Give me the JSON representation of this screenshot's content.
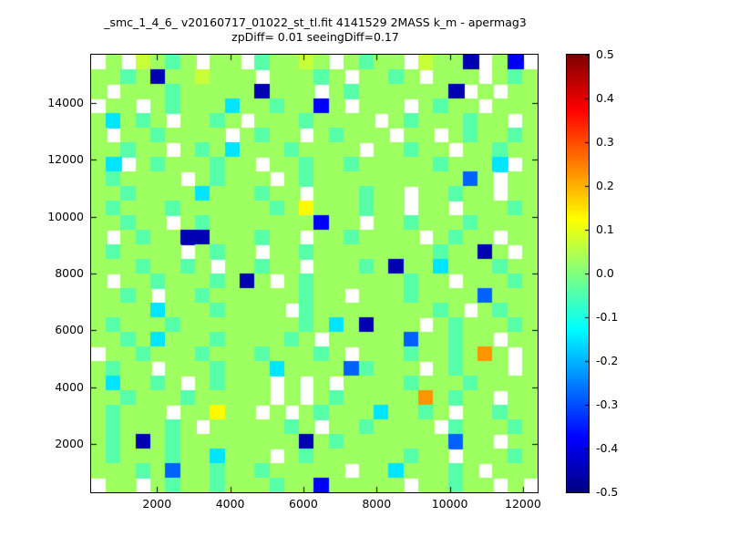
{
  "figure": {
    "title": "_smc_1_4_6_ v20160717_01022_st_tl.fit 4141529 2MASS k_m - apermag3",
    "subtitle": "zpDiff= 0.01 seeingDiff=0.17"
  },
  "chart_data": {
    "type": "heatmap",
    "title": "_smc_1_4_6_ v20160717_01022_st_tl.fit 4141529 2MASS k_m - apermag3",
    "subtitle": "zpDiff= 0.01 seeingDiff=0.17",
    "colormap": "jet",
    "colorbar_range": [
      -0.5,
      0.5
    ],
    "colorbar_tick_values": [
      0.5,
      0.4,
      0.3,
      0.2,
      0.1,
      0.0,
      -0.1,
      -0.2,
      -0.3,
      -0.4,
      -0.5
    ],
    "colorbar_tick_labels": [
      "0.5",
      "0.4",
      "0.3",
      "0.2",
      "0.1",
      "0.0",
      "-0.1",
      "-0.2",
      "-0.3",
      "-0.4",
      "-0.5"
    ],
    "x_ticks": [
      2000,
      4000,
      6000,
      8000,
      10000,
      12000
    ],
    "x_tick_labels": [
      "2000",
      "4000",
      "6000",
      "8000",
      "10000",
      "12000"
    ],
    "y_ticks": [
      2000,
      4000,
      6000,
      8000,
      10000,
      12000,
      14000
    ],
    "y_tick_labels": [
      "2000",
      "4000",
      "6000",
      "8000",
      "10000",
      "12000",
      "14000"
    ],
    "x_range": [
      200,
      12400
    ],
    "y_range": [
      300,
      15700
    ],
    "grid_cols": 30,
    "grid_rows": 30,
    "missing_cell_color": "#ffffff",
    "cell_values": {
      ".": null,
      "0": -0.45,
      "1": -0.38,
      "2": -0.28,
      "3": -0.15,
      "4": -0.1,
      "5": -0.04,
      "6": 0.03,
      "7": 0.07,
      "8": 0.13,
      "9": 0.23
    },
    "rows_top_to_bottom": [
      ".6.7656.66.56676.6566.7660.61.",
      "66560667666.66656.6656.666.656",
      "6.6665666660666.656666660.6.66",
      ".66.6566636656616.666.6566.666",
      "63656.6656.66656666.65666566.6",
      "6.6656666.6566.65666.66.656656",
      "66566.656366656666.66566.66566",
      "63.65666566.6656656666656663.6",
      "656666.65666.65666666666626.66",
      "66566663666566.666566.66566.66",
      "656665666666568666566.66.66656",
      "66566.656666666166.66566656666",
      "6.656600666566.6656666.6566.66",
      "656666.6566.6656666666656606.6",
      "66656656.66566.666560663666566",
      "6.6656665606.65666666566.66656",
      "6656.665666666566.666566662666",
      "6666366656666.56666666656.6566",
      "6566656666666656360666.6566656",
      "665636665666656.66666266566.66",
      ".6656665666566656.6665665696.6",
      "6566.66656663666625666.65666.6",
      "636656.65666.6.6.6666566656666",
      "665666566666.6.656666696566.66",
      "65666.66866.6.6566636656.66566",
      "6566656.6666656.6656666.566656",
      "656065666666660656666666266.66",
      "656665663666.65666666566.66656",
      "66656266566566666.66366656.666",
      ".66.65665666566166666.66566.6."
    ]
  }
}
